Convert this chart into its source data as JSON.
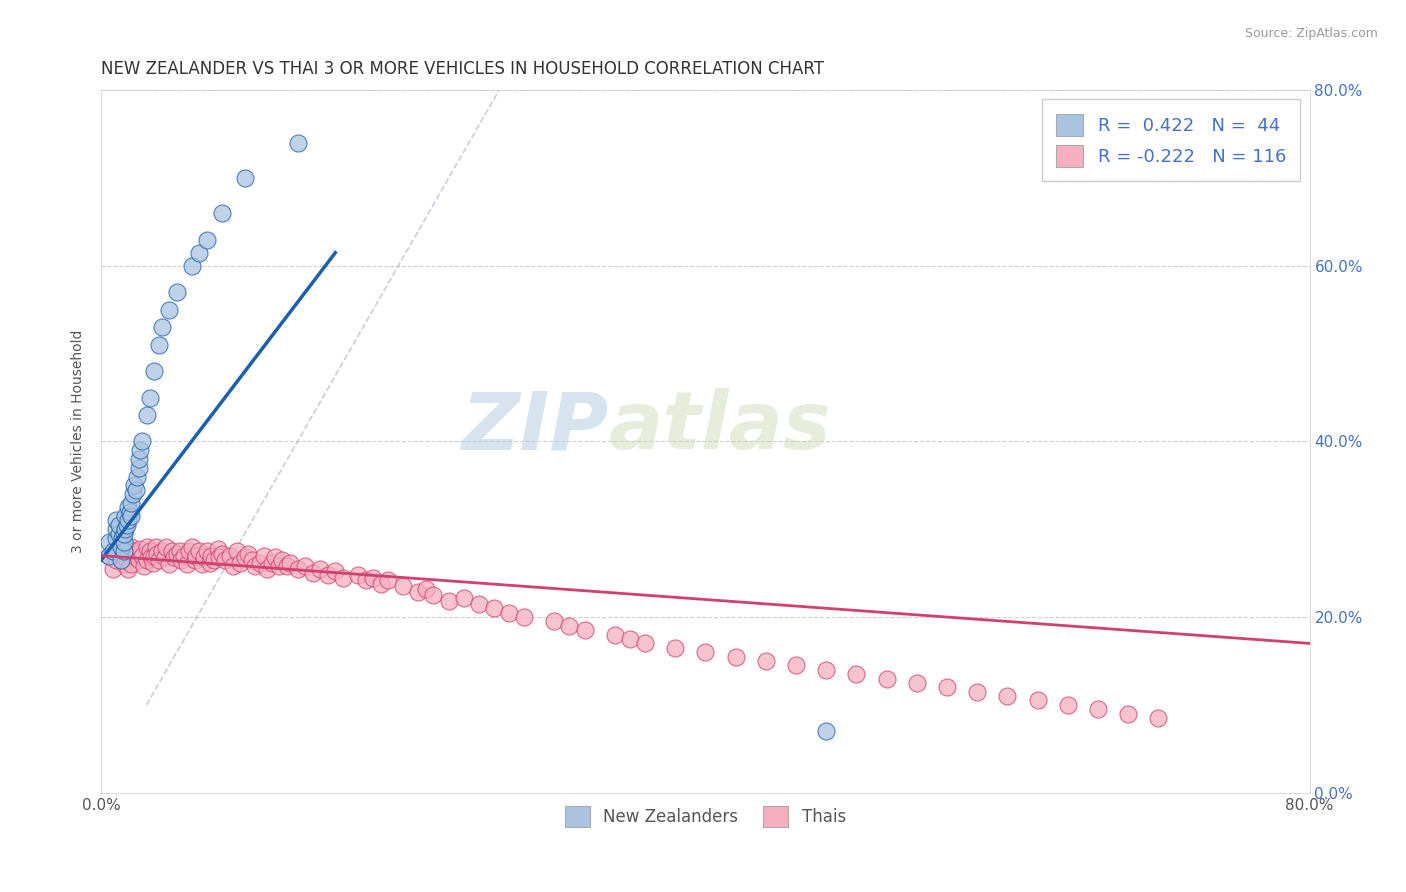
{
  "title": "NEW ZEALANDER VS THAI 3 OR MORE VEHICLES IN HOUSEHOLD CORRELATION CHART",
  "source_text": "Source: ZipAtlas.com",
  "ylabel": "3 or more Vehicles in Household",
  "xlim": [
    0,
    0.8
  ],
  "ylim": [
    0,
    0.8
  ],
  "xticks": [
    0.0,
    0.1,
    0.2,
    0.3,
    0.4,
    0.5,
    0.6,
    0.7,
    0.8
  ],
  "yticks": [
    0.0,
    0.2,
    0.4,
    0.6,
    0.8
  ],
  "xticklabels": [
    "0.0%",
    "",
    "",
    "",
    "",
    "",
    "",
    "",
    "80.0%"
  ],
  "yticklabels_right": [
    "0.0%",
    "20.0%",
    "40.0%",
    "60.0%",
    "80.0%"
  ],
  "nz_color": "#aac4e0",
  "thai_color": "#f5afc0",
  "nz_line_color": "#1a5fb0",
  "thai_line_color": "#d04070",
  "nz_R": 0.422,
  "nz_N": 44,
  "thai_R": -0.222,
  "thai_N": 116,
  "legend_label_nz": "New Zealanders",
  "legend_label_thai": "Thais",
  "watermark_zip": "ZIP",
  "watermark_atlas": "atlas",
  "background_color": "#ffffff",
  "grid_color": "#d0d0d0",
  "nz_x": [
    0.005,
    0.005,
    0.008,
    0.01,
    0.01,
    0.01,
    0.012,
    0.012,
    0.013,
    0.013,
    0.014,
    0.015,
    0.015,
    0.015,
    0.016,
    0.016,
    0.017,
    0.018,
    0.018,
    0.019,
    0.02,
    0.02,
    0.021,
    0.022,
    0.023,
    0.024,
    0.025,
    0.025,
    0.026,
    0.027,
    0.03,
    0.032,
    0.035,
    0.038,
    0.04,
    0.045,
    0.05,
    0.06,
    0.065,
    0.07,
    0.08,
    0.095,
    0.13,
    0.48
  ],
  "nz_y": [
    0.285,
    0.27,
    0.275,
    0.29,
    0.3,
    0.31,
    0.295,
    0.305,
    0.28,
    0.265,
    0.29,
    0.275,
    0.285,
    0.295,
    0.3,
    0.315,
    0.305,
    0.31,
    0.325,
    0.32,
    0.315,
    0.33,
    0.34,
    0.35,
    0.345,
    0.36,
    0.37,
    0.38,
    0.39,
    0.4,
    0.43,
    0.45,
    0.48,
    0.51,
    0.53,
    0.55,
    0.57,
    0.6,
    0.615,
    0.63,
    0.66,
    0.7,
    0.74,
    0.07
  ],
  "thai_x": [
    0.005,
    0.008,
    0.01,
    0.012,
    0.013,
    0.015,
    0.016,
    0.017,
    0.018,
    0.019,
    0.02,
    0.02,
    0.022,
    0.023,
    0.024,
    0.025,
    0.026,
    0.027,
    0.028,
    0.03,
    0.03,
    0.032,
    0.033,
    0.034,
    0.035,
    0.036,
    0.037,
    0.038,
    0.04,
    0.042,
    0.043,
    0.045,
    0.047,
    0.048,
    0.05,
    0.052,
    0.053,
    0.055,
    0.057,
    0.058,
    0.06,
    0.062,
    0.063,
    0.065,
    0.067,
    0.068,
    0.07,
    0.072,
    0.073,
    0.075,
    0.077,
    0.078,
    0.08,
    0.082,
    0.085,
    0.087,
    0.09,
    0.092,
    0.095,
    0.097,
    0.1,
    0.102,
    0.105,
    0.108,
    0.11,
    0.113,
    0.115,
    0.118,
    0.12,
    0.123,
    0.125,
    0.13,
    0.135,
    0.14,
    0.145,
    0.15,
    0.155,
    0.16,
    0.17,
    0.175,
    0.18,
    0.185,
    0.19,
    0.2,
    0.21,
    0.215,
    0.22,
    0.23,
    0.24,
    0.25,
    0.26,
    0.27,
    0.28,
    0.3,
    0.31,
    0.32,
    0.34,
    0.35,
    0.36,
    0.38,
    0.4,
    0.42,
    0.44,
    0.46,
    0.48,
    0.5,
    0.52,
    0.54,
    0.56,
    0.58,
    0.6,
    0.62,
    0.64,
    0.66,
    0.68,
    0.7
  ],
  "thai_y": [
    0.27,
    0.255,
    0.265,
    0.28,
    0.27,
    0.26,
    0.275,
    0.265,
    0.255,
    0.27,
    0.28,
    0.26,
    0.275,
    0.268,
    0.272,
    0.265,
    0.278,
    0.27,
    0.258,
    0.28,
    0.265,
    0.275,
    0.268,
    0.262,
    0.27,
    0.28,
    0.272,
    0.265,
    0.275,
    0.268,
    0.28,
    0.26,
    0.275,
    0.268,
    0.272,
    0.275,
    0.265,
    0.27,
    0.26,
    0.275,
    0.28,
    0.265,
    0.27,
    0.275,
    0.26,
    0.268,
    0.275,
    0.262,
    0.27,
    0.265,
    0.278,
    0.268,
    0.272,
    0.265,
    0.27,
    0.258,
    0.275,
    0.262,
    0.268,
    0.272,
    0.265,
    0.258,
    0.262,
    0.27,
    0.255,
    0.262,
    0.268,
    0.258,
    0.265,
    0.258,
    0.262,
    0.255,
    0.258,
    0.25,
    0.255,
    0.248,
    0.252,
    0.245,
    0.248,
    0.242,
    0.245,
    0.238,
    0.242,
    0.235,
    0.228,
    0.232,
    0.225,
    0.218,
    0.222,
    0.215,
    0.21,
    0.205,
    0.2,
    0.195,
    0.19,
    0.185,
    0.18,
    0.175,
    0.17,
    0.165,
    0.16,
    0.155,
    0.15,
    0.145,
    0.14,
    0.135,
    0.13,
    0.125,
    0.12,
    0.115,
    0.11,
    0.105,
    0.1,
    0.095,
    0.09,
    0.085
  ]
}
